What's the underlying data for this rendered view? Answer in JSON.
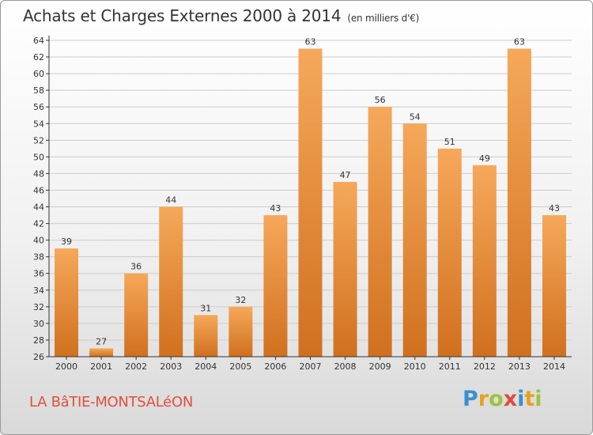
{
  "header": {
    "title": "Achats et Charges Externes 2000 à 2014",
    "subtitle": "(en milliers d'€)"
  },
  "footer": {
    "town": "LA BâTIE-MONTSALéON",
    "logo": {
      "letters": [
        "P",
        "r",
        "o",
        "x",
        "i",
        "t",
        "i"
      ],
      "colors": [
        "#3a8fd0",
        "#e8a020",
        "#9bc43c",
        "#e24a3a",
        "#3a8fd0",
        "#e8a020",
        "#9bc43c"
      ]
    }
  },
  "colors": {
    "bar_light": "#f6a85a",
    "bar_dark": "#d0701e",
    "grid": "#cccccc",
    "axis": "#333333",
    "text": "#333333"
  },
  "chart_data": {
    "type": "bar",
    "title": "Achats et Charges Externes 2000 à 2014",
    "subtitle": "(en milliers d'€)",
    "categories": [
      "2000",
      "2001",
      "2002",
      "2003",
      "2004",
      "2005",
      "2006",
      "2007",
      "2008",
      "2009",
      "2010",
      "2011",
      "2012",
      "2013",
      "2014"
    ],
    "values": [
      39,
      27,
      36,
      44,
      31,
      32,
      43,
      63,
      47,
      56,
      54,
      51,
      49,
      63,
      43
    ],
    "ylim": [
      26,
      64
    ],
    "yticks": [
      26,
      28,
      30,
      32,
      34,
      36,
      38,
      40,
      42,
      44,
      46,
      48,
      50,
      52,
      54,
      56,
      58,
      60,
      62,
      64
    ],
    "grid": true,
    "xlabel": "",
    "ylabel": ""
  }
}
